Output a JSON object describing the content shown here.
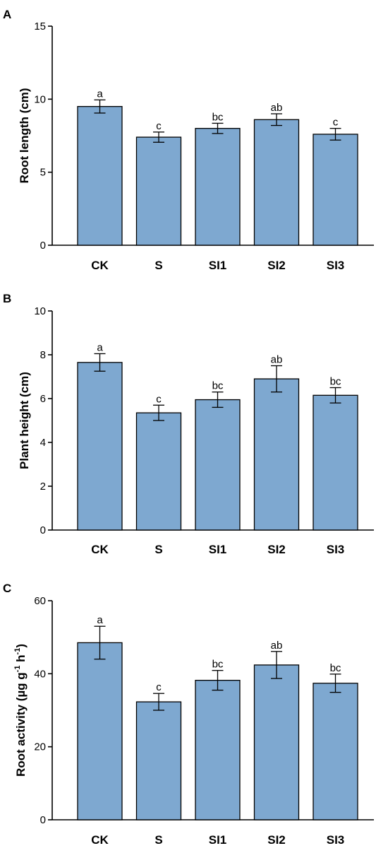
{
  "figure": {
    "bar_color": "#7ea8d0",
    "edge_color": "#000000"
  },
  "chart_data": [
    {
      "type": "bar",
      "panel": "A",
      "ylabel": "Root length (cm)",
      "categories": [
        "CK",
        "S",
        "SI1",
        "SI2",
        "SI3"
      ],
      "values": [
        9.5,
        7.4,
        8.0,
        8.6,
        7.6
      ],
      "errors": [
        0.45,
        0.35,
        0.35,
        0.4,
        0.4
      ],
      "significance": [
        "a",
        "c",
        "bc",
        "ab",
        "c"
      ],
      "ylim": [
        0,
        15
      ],
      "yticks": [
        0,
        5,
        10,
        15
      ]
    },
    {
      "type": "bar",
      "panel": "B",
      "ylabel": "Plant height (cm)",
      "categories": [
        "CK",
        "S",
        "SI1",
        "SI2",
        "SI3"
      ],
      "values": [
        7.65,
        5.35,
        5.95,
        6.9,
        6.15
      ],
      "errors": [
        0.4,
        0.35,
        0.35,
        0.6,
        0.35
      ],
      "significance": [
        "a",
        "c",
        "bc",
        "ab",
        "bc"
      ],
      "ylim": [
        0,
        10
      ],
      "yticks": [
        0,
        2,
        4,
        6,
        8,
        10
      ]
    },
    {
      "type": "bar",
      "panel": "C",
      "ylabel": "Root activity (µg g",
      "ylabel_sup1": "-1",
      "ylabel_mid": " h",
      "ylabel_sup2": "-1",
      "ylabel_end": ")",
      "categories": [
        "CK",
        "S",
        "SI1",
        "SI2",
        "SI3"
      ],
      "values": [
        48.5,
        32.3,
        38.2,
        42.4,
        37.4
      ],
      "errors": [
        4.5,
        2.3,
        2.7,
        3.7,
        2.5
      ],
      "significance": [
        "a",
        "c",
        "bc",
        "ab",
        "bc"
      ],
      "ylim": [
        0,
        60
      ],
      "yticks": [
        0,
        20,
        40,
        60
      ]
    }
  ]
}
